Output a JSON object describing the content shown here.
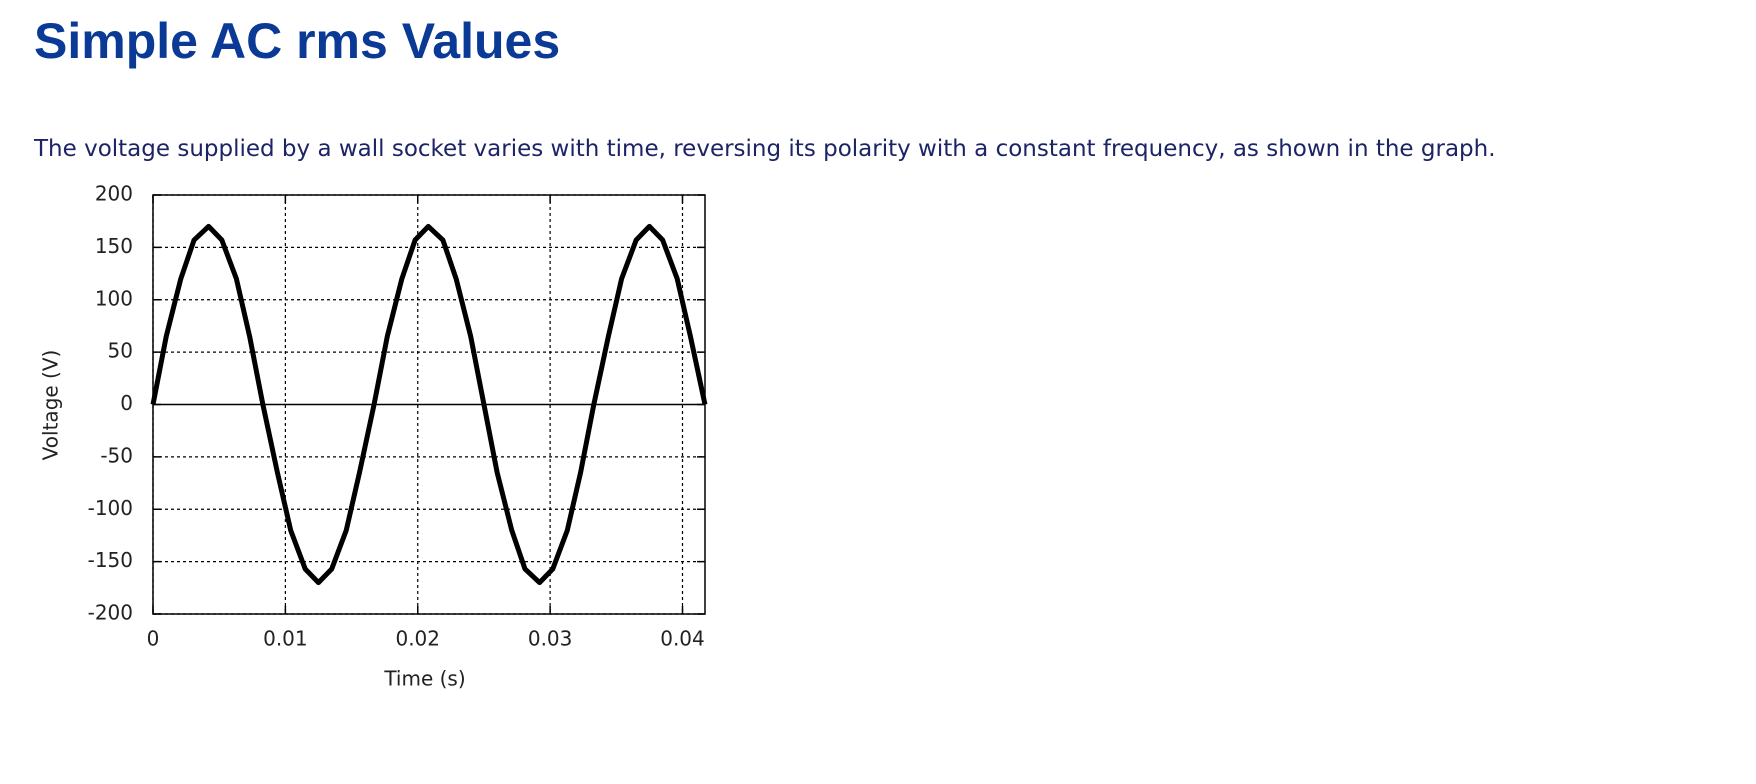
{
  "header": {
    "title": "Simple AC rms Values"
  },
  "paragraph": "The voltage supplied by a wall socket varies with time, reversing its polarity with a constant frequency, as shown in the graph.",
  "chart_data": {
    "type": "line",
    "x_label": "Time (s)",
    "y_label": "Voltage (V)",
    "x": [
      0,
      0.001,
      0.0021,
      0.0031,
      0.0042,
      0.0052,
      0.0063,
      0.0073,
      0.0083,
      0.0094,
      0.0104,
      0.0115,
      0.0125,
      0.0135,
      0.0146,
      0.0156,
      0.0167,
      0.0177,
      0.0188,
      0.0198,
      0.0208,
      0.0219,
      0.0229,
      0.024,
      0.025,
      0.026,
      0.0271,
      0.0281,
      0.0292,
      0.0302,
      0.0313,
      0.0323,
      0.0333,
      0.0344,
      0.0354,
      0.0365,
      0.0375,
      0.0385,
      0.0396,
      0.0406,
      0.0417
    ],
    "series": [
      {
        "color": "#000000",
        "values": [
          0,
          65,
          120,
          157,
          170,
          157,
          120,
          65,
          0,
          -65,
          -120,
          -157,
          -170,
          -157,
          -120,
          -65,
          0,
          65,
          120,
          157,
          170,
          157,
          120,
          65,
          0,
          -65,
          -120,
          -157,
          -170,
          -157,
          -120,
          -65,
          0,
          65,
          120,
          157,
          170,
          157,
          120,
          65,
          0
        ]
      }
    ],
    "xlim": [
      0,
      0.0417
    ],
    "ylim": [
      -200,
      200
    ],
    "xticks": [
      0,
      0.01,
      0.02,
      0.03,
      0.04
    ],
    "yticks": [
      -200,
      -150,
      -100,
      -50,
      0,
      50,
      100,
      150,
      200
    ],
    "grid": true
  }
}
